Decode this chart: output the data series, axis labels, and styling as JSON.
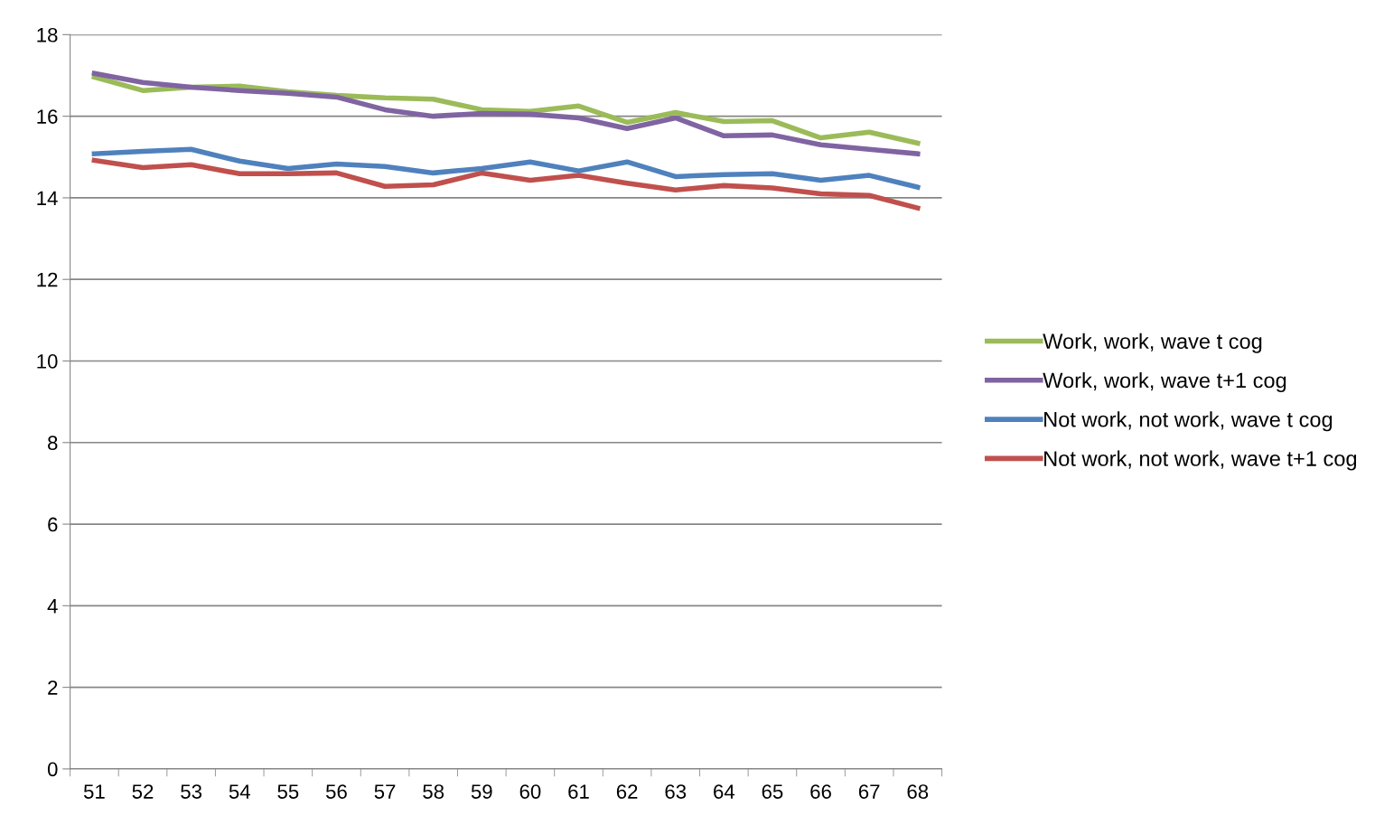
{
  "chart_data": {
    "type": "line",
    "categories": [
      "51",
      "52",
      "53",
      "54",
      "55",
      "56",
      "57",
      "58",
      "59",
      "60",
      "61",
      "62",
      "63",
      "64",
      "65",
      "66",
      "67",
      "68"
    ],
    "series": [
      {
        "name": "Work, work, wave t cog",
        "color": "#9bbb59",
        "values": [
          16.96,
          16.63,
          16.71,
          16.74,
          16.6,
          16.51,
          16.45,
          16.42,
          16.16,
          16.12,
          16.25,
          15.85,
          16.09,
          15.87,
          15.89,
          15.47,
          15.61,
          15.34
        ]
      },
      {
        "name": "Work, work, wave t+1 cog",
        "color": "#8064a2",
        "values": [
          17.05,
          16.83,
          16.71,
          16.63,
          16.56,
          16.47,
          16.16,
          16.0,
          16.07,
          16.05,
          15.96,
          15.7,
          15.96,
          15.52,
          15.54,
          15.3,
          15.19,
          15.08
        ]
      },
      {
        "name": "Not work, not work, wave t cog",
        "color": "#4f81bd",
        "values": [
          15.08,
          15.14,
          15.19,
          14.9,
          14.72,
          14.83,
          14.77,
          14.61,
          14.72,
          14.88,
          14.66,
          14.88,
          14.52,
          14.57,
          14.59,
          14.43,
          14.55,
          14.26
        ]
      },
      {
        "name": "Not work, not work, wave t+1 cog",
        "color": "#c0504d",
        "values": [
          14.92,
          14.74,
          14.81,
          14.59,
          14.59,
          14.61,
          14.28,
          14.32,
          14.61,
          14.43,
          14.55,
          14.36,
          14.19,
          14.3,
          14.24,
          14.1,
          14.06,
          13.75
        ]
      }
    ],
    "ylim": [
      0,
      18
    ],
    "yticks": [
      0,
      2,
      4,
      6,
      8,
      10,
      12,
      14,
      16,
      18
    ],
    "grid": "y",
    "legend": "right",
    "marker": "none",
    "line_style": "solid"
  }
}
